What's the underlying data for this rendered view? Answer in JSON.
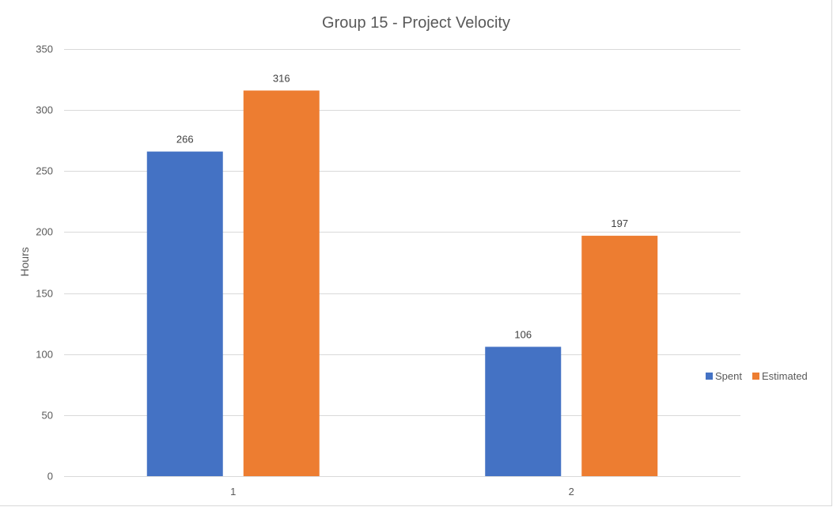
{
  "chart_data": {
    "type": "bar",
    "title": "Group 15 - Project Velocity",
    "xlabel": "",
    "ylabel": "Hours",
    "categories": [
      "1",
      "2"
    ],
    "series": [
      {
        "name": "Spent",
        "values": [
          266,
          106
        ],
        "color": "#4472c4"
      },
      {
        "name": "Estimated",
        "values": [
          316,
          197
        ],
        "color": "#ed7d31"
      }
    ],
    "ylim": [
      0,
      350
    ],
    "yticks": [
      0,
      50,
      100,
      150,
      200,
      250,
      300,
      350
    ],
    "grid": true,
    "legend_position": "right",
    "data_labels": true
  }
}
